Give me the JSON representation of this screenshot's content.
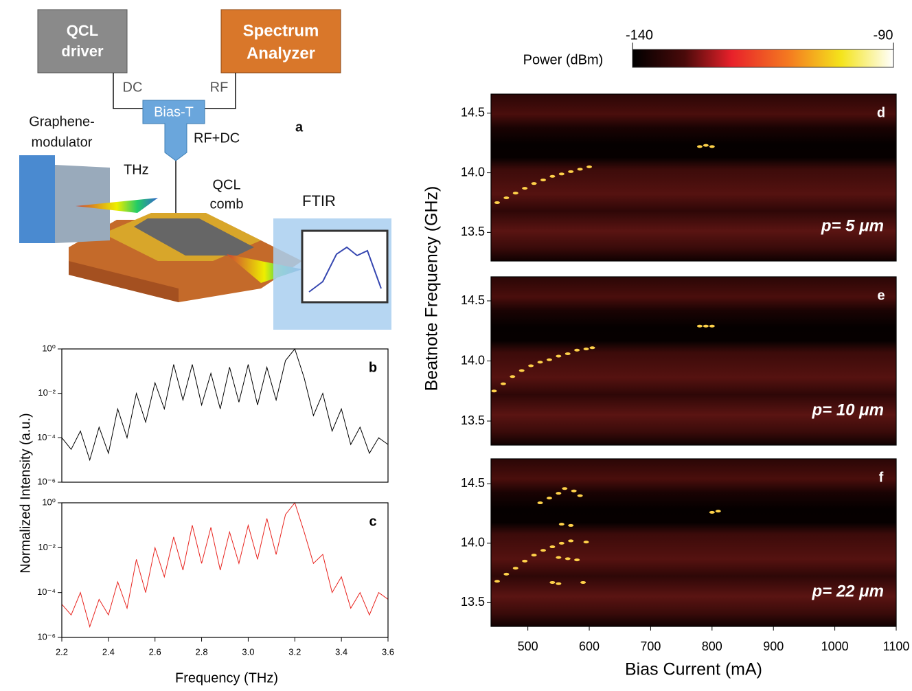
{
  "diagram": {
    "panel_label": "a",
    "driver": [
      "QCL",
      "driver"
    ],
    "analyzer": [
      "Spectrum",
      "Analyzer"
    ],
    "dc": "DC",
    "rf": "RF",
    "bias_t": "Bias-T",
    "rf_dc": "RF+DC",
    "modulator": [
      "Graphene-",
      "modulator"
    ],
    "thz": "THz",
    "comb": [
      "QCL",
      "comb"
    ],
    "ftir": "FTIR"
  },
  "axis_labels": {
    "left_y": "Normalized Intensity (a.u.)",
    "left_x": "Frequency (THz)",
    "right_y": "Beatnote Frequency (GHz)",
    "right_x": "Bias Current (mA)"
  },
  "colorbar": {
    "label": "Power (dBm)",
    "lim": [
      -140,
      -90
    ],
    "ticks": [
      -140,
      -90
    ]
  },
  "chart_data": [
    {
      "type": "line",
      "panel": "b",
      "log_y": true,
      "xlim": [
        2.2,
        3.6
      ],
      "ylim": [
        1e-06,
        1
      ],
      "yticks": [
        {
          "value": 1e-06,
          "label": "10⁻⁶"
        },
        {
          "value": 0.0001,
          "label": "10⁻⁴"
        },
        {
          "value": 0.01,
          "label": "10⁻²"
        },
        {
          "value": 1,
          "label": "10⁰"
        }
      ],
      "series": [
        {
          "color": "#000000",
          "x": [
            2.2,
            2.24,
            2.28,
            2.32,
            2.36,
            2.4,
            2.44,
            2.48,
            2.52,
            2.56,
            2.6,
            2.64,
            2.68,
            2.72,
            2.76,
            2.8,
            2.84,
            2.88,
            2.92,
            2.96,
            3.0,
            3.04,
            3.08,
            3.12,
            3.16,
            3.2,
            3.24,
            3.28,
            3.32,
            3.36,
            3.4,
            3.44,
            3.48,
            3.52,
            3.56,
            3.6
          ],
          "values": [
            0.0001,
            3e-05,
            0.0002,
            1e-05,
            0.0003,
            2e-05,
            0.002,
            0.0001,
            0.01,
            0.0005,
            0.03,
            0.002,
            0.2,
            0.005,
            0.2,
            0.003,
            0.08,
            0.002,
            0.15,
            0.004,
            0.2,
            0.003,
            0.15,
            0.005,
            0.3,
            1,
            0.05,
            0.001,
            0.01,
            0.0002,
            0.002,
            5e-05,
            0.0003,
            2e-05,
            0.0001,
            5e-05
          ]
        }
      ]
    },
    {
      "type": "line",
      "panel": "c",
      "log_y": true,
      "xlim": [
        2.2,
        3.6
      ],
      "ylim": [
        1e-06,
        1
      ],
      "xticks": [
        2.2,
        2.4,
        2.6,
        2.8,
        {
          "value": 3,
          "label": "3.0"
        },
        3.2,
        3.4,
        3.6
      ],
      "yticks": [
        {
          "value": 1e-06,
          "label": "10⁻⁶"
        },
        {
          "value": 0.0001,
          "label": "10⁻⁴"
        },
        {
          "value": 0.01,
          "label": "10⁻²"
        },
        {
          "value": 1,
          "label": "10⁰"
        }
      ],
      "series": [
        {
          "color": "#e8231e",
          "x": [
            2.2,
            2.24,
            2.28,
            2.32,
            2.36,
            2.4,
            2.44,
            2.48,
            2.52,
            2.56,
            2.6,
            2.64,
            2.68,
            2.72,
            2.76,
            2.8,
            2.84,
            2.88,
            2.92,
            2.96,
            3.0,
            3.04,
            3.08,
            3.12,
            3.16,
            3.2,
            3.24,
            3.28,
            3.32,
            3.36,
            3.4,
            3.44,
            3.48,
            3.52,
            3.56,
            3.6
          ],
          "values": [
            3e-05,
            1e-05,
            0.0001,
            3e-06,
            5e-05,
            1e-05,
            0.0003,
            2e-05,
            0.003,
            0.0001,
            0.01,
            0.0005,
            0.03,
            0.001,
            0.1,
            0.002,
            0.08,
            0.001,
            0.05,
            0.002,
            0.1,
            0.003,
            0.2,
            0.005,
            0.3,
            1,
            0.05,
            0.002,
            0.005,
            0.0001,
            0.0005,
            2e-05,
            0.0001,
            1e-05,
            0.0001,
            5e-05
          ]
        }
      ]
    },
    {
      "type": "heatmap",
      "panel": "d",
      "annotation": "p= 5 μm",
      "xlim": [
        440,
        1100
      ],
      "ylim": [
        13.26,
        14.66
      ],
      "yticks": [
        13.5,
        {
          "value": 14,
          "label": "14.0"
        },
        14.5
      ],
      "color": "#ffd24a",
      "points": {
        "x": [
          450,
          465,
          480,
          495,
          510,
          525,
          540,
          555,
          570,
          585,
          600,
          780,
          790,
          800
        ],
        "values": [
          13.75,
          13.79,
          13.83,
          13.87,
          13.91,
          13.94,
          13.97,
          13.99,
          14.01,
          14.03,
          14.05,
          14.22,
          14.23,
          14.22
        ]
      }
    },
    {
      "type": "heatmap",
      "panel": "e",
      "annotation": "p= 10 μm",
      "xlim": [
        440,
        1100
      ],
      "ylim": [
        13.3,
        14.7
      ],
      "yticks": [
        13.5,
        {
          "value": 14,
          "label": "14.0"
        },
        14.5
      ],
      "color": "#ffd24a",
      "points": {
        "x": [
          445,
          460,
          475,
          490,
          505,
          520,
          535,
          550,
          565,
          580,
          595,
          605,
          780,
          790,
          800
        ],
        "values": [
          13.75,
          13.81,
          13.87,
          13.92,
          13.96,
          13.99,
          14.01,
          14.04,
          14.06,
          14.09,
          14.1,
          14.11,
          14.29,
          14.29,
          14.29
        ]
      }
    },
    {
      "type": "heatmap",
      "panel": "f",
      "annotation": "p= 22 μm",
      "xlim": [
        440,
        1100
      ],
      "ylim": [
        13.3,
        14.71
      ],
      "yticks": [
        13.5,
        {
          "value": 14,
          "label": "14.0"
        },
        14.5
      ],
      "xticks": [
        500,
        600,
        700,
        800,
        900,
        1000,
        1100
      ],
      "color": "#ffd24a",
      "points": {
        "x": [
          450,
          465,
          480,
          495,
          510,
          525,
          540,
          555,
          570,
          520,
          535,
          550,
          560,
          575,
          585,
          555,
          570,
          550,
          565,
          580,
          540,
          550,
          590,
          595,
          800,
          810
        ],
        "values": [
          13.68,
          13.74,
          13.79,
          13.85,
          13.9,
          13.94,
          13.97,
          14.0,
          14.02,
          14.34,
          14.38,
          14.42,
          14.46,
          14.44,
          14.4,
          14.16,
          14.15,
          13.88,
          13.87,
          13.86,
          13.67,
          13.66,
          13.67,
          14.01,
          14.26,
          14.27
        ]
      }
    }
  ]
}
